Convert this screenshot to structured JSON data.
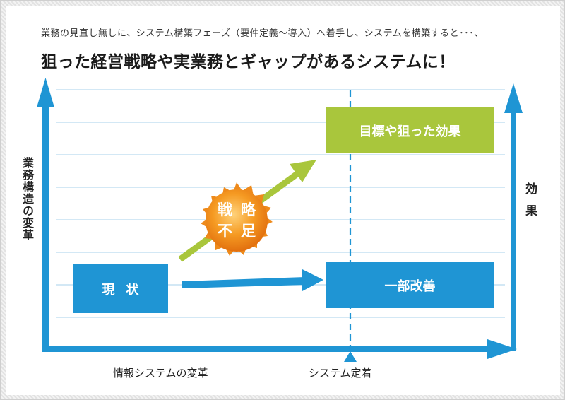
{
  "subtitle": "業務の見直し無しに、システム構築フェーズ（要件定義〜導入）へ着手し、システムを構築すると･･･、",
  "headline": "狙った経営戦略や実業務とギャップがあるシステムに！",
  "boxes": {
    "current": "現状",
    "partial": "一部改善",
    "target": "目標や狙った効果"
  },
  "burst": {
    "line1": "戦略",
    "line2": "不足"
  },
  "axes": {
    "y_label": "業務構造の変革",
    "x_label": "情報システムの変革",
    "right_label": "効果",
    "settle_label": "システム定着"
  },
  "colors": {
    "blue": "#1f95d4",
    "green": "#a9c63c",
    "orange": "#f08a1c",
    "grid": "#b9dbef"
  }
}
